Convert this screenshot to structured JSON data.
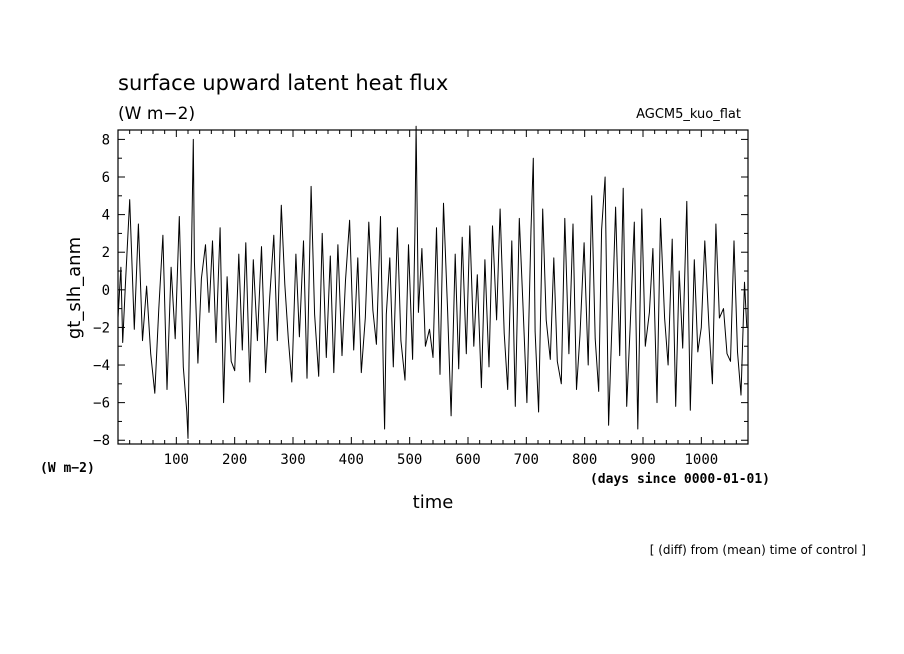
{
  "header": {
    "title": "surface upward latent heat flux",
    "units": "(W m−2)",
    "experiment": "AGCM5_kuo_flat"
  },
  "left_units": "(W m−2)",
  "footnote": "[ (diff) from (mean) time of control ]",
  "chart_data": {
    "type": "line",
    "title": "surface upward latent heat flux",
    "xlabel": "time",
    "ylabel": "gt_slh_anm",
    "x_unit_label": "(days since 0000-01-01)",
    "xlim": [
      0,
      1080
    ],
    "ylim": [
      -8.2,
      8.5
    ],
    "xticks": [
      100,
      200,
      300,
      400,
      500,
      600,
      700,
      800,
      900,
      1000
    ],
    "yticks": [
      -8,
      -6,
      -4,
      -2,
      0,
      2,
      4,
      6,
      8
    ],
    "grid": false,
    "series": [
      {
        "x": [
          0,
          5,
          8,
          13,
          20,
          28,
          35,
          42,
          49,
          56,
          63,
          70,
          77,
          84,
          91,
          98,
          105,
          112,
          118,
          120,
          122,
          126,
          129,
          131,
          137,
          143,
          150,
          156,
          162,
          168,
          175,
          181,
          187,
          194,
          200,
          207,
          213,
          219,
          226,
          232,
          239,
          246,
          253,
          260,
          267,
          273,
          280,
          286,
          292,
          298,
          305,
          311,
          318,
          324,
          331,
          337,
          344,
          350,
          357,
          364,
          370,
          377,
          384,
          390,
          397,
          404,
          411,
          417,
          424,
          430,
          437,
          443,
          450,
          455,
          457,
          460,
          466,
          472,
          479,
          485,
          492,
          498,
          505,
          509,
          511,
          515,
          521,
          527,
          534,
          540,
          546,
          552,
          558,
          565,
          571,
          578,
          584,
          590,
          597,
          603,
          610,
          616,
          623,
          629,
          636,
          642,
          649,
          655,
          662,
          668,
          675,
          681,
          688,
          694,
          701,
          708,
          712,
          715,
          721,
          728,
          734,
          741,
          747,
          753,
          760,
          766,
          773,
          780,
          786,
          792,
          799,
          806,
          812,
          818,
          824,
          829,
          835,
          841,
          847,
          853,
          860,
          866,
          872,
          878,
          885,
          891,
          898,
          904,
          911,
          917,
          924,
          930,
          937,
          943,
          950,
          956,
          962,
          968,
          975,
          981,
          988,
          994,
          1000,
          1006,
          1013,
          1019,
          1025,
          1031,
          1038,
          1044,
          1050,
          1056,
          1062,
          1068,
          1074,
          1078
        ],
        "y": [
          -1.5,
          1.2,
          -2.8,
          0.5,
          4.8,
          -2.1,
          3.5,
          -2.7,
          0.2,
          -3.4,
          -5.5,
          -1.0,
          2.9,
          -5.3,
          1.2,
          -2.6,
          3.9,
          -4.1,
          -6.5,
          -7.9,
          -3.2,
          2.0,
          8.0,
          1.5,
          -3.9,
          0.6,
          2.4,
          -1.2,
          2.6,
          -2.8,
          3.3,
          -6.0,
          0.7,
          -3.8,
          -4.3,
          1.9,
          -3.2,
          2.5,
          -4.9,
          1.6,
          -2.7,
          2.3,
          -4.4,
          -0.4,
          2.9,
          -2.7,
          4.5,
          0.3,
          -2.6,
          -4.9,
          1.9,
          -2.5,
          2.6,
          -4.7,
          5.5,
          -1.3,
          -4.6,
          3.0,
          -3.6,
          1.8,
          -4.4,
          2.4,
          -3.5,
          0.5,
          3.7,
          -3.2,
          1.7,
          -4.4,
          -1.5,
          3.6,
          -1.1,
          -2.9,
          3.9,
          -4.6,
          -7.4,
          -1.3,
          1.7,
          -4.1,
          3.3,
          -2.7,
          -4.8,
          2.4,
          -3.7,
          3.0,
          8.7,
          -1.2,
          2.2,
          -3.0,
          -2.1,
          -3.6,
          3.3,
          -4.5,
          4.6,
          -1.1,
          -6.7,
          1.9,
          -4.2,
          2.8,
          -3.4,
          3.4,
          -3.0,
          0.8,
          -5.2,
          1.6,
          -4.1,
          3.4,
          -1.6,
          4.3,
          -2.3,
          -5.3,
          2.6,
          -6.2,
          3.8,
          -0.6,
          -6.0,
          3.2,
          7.0,
          -2.2,
          -6.5,
          4.3,
          -1.6,
          -3.7,
          1.7,
          -3.8,
          -5.0,
          3.8,
          -3.4,
          3.5,
          -5.3,
          -2.4,
          2.5,
          -4.0,
          5.0,
          -2.6,
          -5.4,
          3.2,
          6.0,
          -7.2,
          -1.6,
          4.4,
          -3.5,
          5.4,
          -6.2,
          -1.9,
          3.6,
          -7.4,
          4.3,
          -3.0,
          -1.2,
          2.2,
          -6.0,
          3.8,
          -1.5,
          -4.0,
          2.7,
          -6.2,
          1.0,
          -3.1,
          4.7,
          -6.4,
          1.6,
          -3.3,
          -2.0,
          2.6,
          -1.9,
          -5.0,
          3.5,
          -1.5,
          -1.0,
          -3.4,
          -3.8,
          2.6,
          -3.3,
          -5.6,
          0.4,
          -2.0
        ]
      }
    ]
  }
}
